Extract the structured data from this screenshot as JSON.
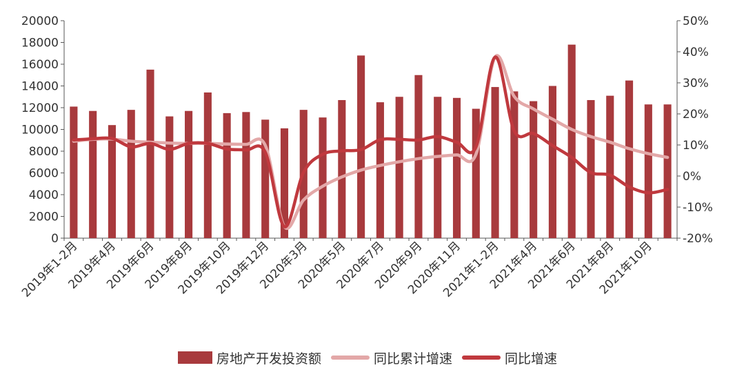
{
  "chart_data": {
    "type": "bar",
    "categories": [
      "2019年1-2月",
      "2019年3月",
      "2019年4月",
      "2019年5月",
      "2019年6月",
      "2019年7月",
      "2019年8月",
      "2019年9月",
      "2019年10月",
      "2019年11月",
      "2019年12月",
      "2020年1-2月",
      "2020年3月",
      "2020年4月",
      "2020年5月",
      "2020年6月",
      "2020年7月",
      "2020年8月",
      "2020年9月",
      "2020年10月",
      "2020年11月",
      "2020年12月",
      "2021年1-2月",
      "2021年3月",
      "2021年4月",
      "2021年5月",
      "2021年6月",
      "2021年7月",
      "2021年8月",
      "2021年9月",
      "2021年10月",
      "2021年11月"
    ],
    "tick_labels": [
      "2019年1-2月",
      "2019年4月",
      "2019年6月",
      "2019年8月",
      "2019年10月",
      "2019年12月",
      "2020年3月",
      "2020年5月",
      "2020年7月",
      "2020年9月",
      "2020年11月",
      "2021年1-2月",
      "2021年4月",
      "2021年6月",
      "2021年8月",
      "2021年10月"
    ],
    "series": [
      {
        "name": "房地产开发投资额",
        "type": "bar",
        "axis": "left",
        "color": "#a83a3d",
        "values": [
          12100,
          11700,
          10400,
          11800,
          15500,
          11200,
          11700,
          13400,
          11500,
          11600,
          10900,
          10100,
          11800,
          11100,
          12700,
          16800,
          12500,
          13000,
          15000,
          13000,
          12900,
          11900,
          13900,
          13500,
          12600,
          14000,
          17800,
          12700,
          13100,
          14500,
          12300,
          12300
        ]
      },
      {
        "name": "同比累计增速",
        "type": "line",
        "axis": "right",
        "color": "#e3a8a8",
        "values": [
          11.2,
          11.8,
          11.9,
          11.2,
          10.9,
          10.6,
          10.5,
          10.5,
          10.3,
          10.2,
          9.9,
          -16.3,
          -7.7,
          -3.3,
          -0.3,
          1.9,
          3.4,
          4.6,
          5.6,
          6.3,
          6.8,
          7.0,
          38.3,
          25.6,
          21.6,
          18.3,
          15.0,
          12.7,
          10.9,
          8.8,
          7.2,
          6.0
        ]
      },
      {
        "name": "同比增速",
        "type": "line",
        "axis": "right",
        "color": "#c0393e",
        "values": [
          11.6,
          12.0,
          12.1,
          9.4,
          10.5,
          8.6,
          10.5,
          10.5,
          8.7,
          8.4,
          7.7,
          -16.3,
          1.2,
          7.0,
          8.1,
          8.5,
          11.7,
          11.8,
          11.6,
          12.7,
          10.9,
          9.3,
          38.3,
          14.5,
          13.7,
          9.8,
          6.0,
          1.1,
          0.3,
          -3.5,
          -5.4,
          -4.3
        ]
      }
    ],
    "y_left": {
      "min": 0,
      "max": 20000,
      "step": 2000,
      "ticks": [
        "0",
        "2000",
        "4000",
        "6000",
        "8000",
        "10000",
        "12000",
        "14000",
        "16000",
        "18000",
        "20000"
      ]
    },
    "y_right": {
      "min": -20,
      "max": 50,
      "step": 10,
      "ticks": [
        "-20%",
        "-10%",
        "0%",
        "10%",
        "20%",
        "30%",
        "40%",
        "50%"
      ]
    },
    "grid": false,
    "legend_position": "bottom"
  },
  "legend": {
    "bar": "房地产开发投资额",
    "line1": "同比累计增速",
    "line2": "同比增速"
  }
}
